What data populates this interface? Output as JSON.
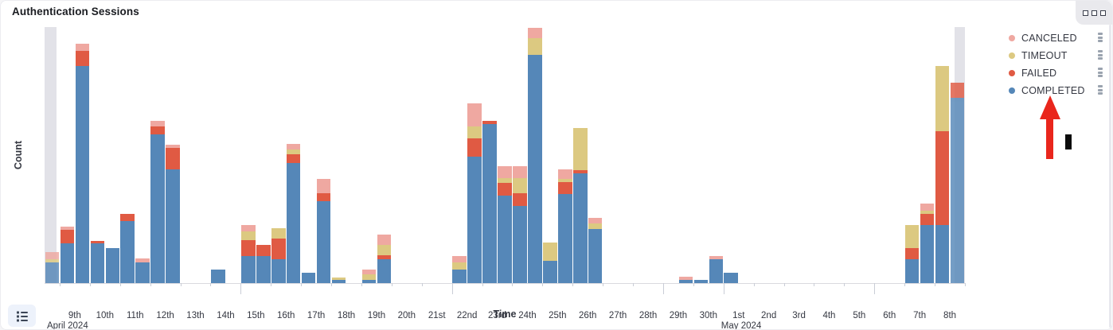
{
  "panel": {
    "title": "Authentication Sessions"
  },
  "icons": {
    "panel_options": "three-boxes-icon",
    "legend_toggle": "list-icon"
  },
  "legend": {
    "position": "right",
    "items": [
      {
        "key": "canceled",
        "label": "CANCELED",
        "color": "#EFA8A1"
      },
      {
        "key": "timeout",
        "label": "TIMEOUT",
        "color": "#DCC981"
      },
      {
        "key": "failed",
        "label": "FAILED",
        "color": "#E05A43"
      },
      {
        "key": "completed",
        "label": "COMPLETED",
        "color": "#5587B8"
      }
    ]
  },
  "annotation": {
    "arrow_color": "#E9261C",
    "arrow_points_to": "COMPLETED",
    "cursor_mark_color": "#0B0B0B"
  },
  "chart_data": {
    "type": "bar",
    "stacked": true,
    "title": "Authentication Sessions",
    "xlabel": "Time",
    "ylabel": "Count",
    "y_tick_labels": [],
    "value_units": "relative (no numeric y ticks shown); values are pixel heights, plot height 322",
    "ylim": [
      0,
      322
    ],
    "bucket_hours": 12,
    "buckets_total": 61,
    "domain_start": "Apr 8 2024 12:00",
    "domain_end": "May 9 2024 00:00",
    "stack_order_bottom_to_top": [
      "completed",
      "failed",
      "timeout",
      "canceled"
    ],
    "partial_bucket_bands": {
      "left": true,
      "right": true,
      "color": "#E2E2E8"
    },
    "x_day_ticks": [
      "9th",
      "10th",
      "11th",
      "12th",
      "13th",
      "14th",
      "15th",
      "16th",
      "17th",
      "18th",
      "19th",
      "20th",
      "21st",
      "22nd",
      "23rd",
      "24th",
      "25th",
      "26th",
      "27th",
      "28th",
      "29th",
      "30th",
      "1st",
      "2nd",
      "3rd",
      "4th",
      "5th",
      "6th",
      "7th",
      "8th"
    ],
    "x_major_tick_day_indices": [
      6,
      13,
      20,
      22,
      27
    ],
    "x_month_labels": [
      {
        "text": "April 2024",
        "day_index": 0
      },
      {
        "text": "May 2024",
        "day_index": 22
      }
    ],
    "bars": [
      {
        "i": 0,
        "bucket": "Apr 8 12:00",
        "completed": 26,
        "failed": 0,
        "timeout": 4,
        "canceled": 9,
        "dimmed": true
      },
      {
        "i": 1,
        "bucket": "Apr 9 00:00",
        "completed": 50,
        "failed": 17,
        "timeout": 0,
        "canceled": 4,
        "dimmed": false
      },
      {
        "i": 2,
        "bucket": "Apr 9 12:00",
        "completed": 273,
        "failed": 19,
        "timeout": 0,
        "canceled": 9,
        "dimmed": false
      },
      {
        "i": 3,
        "bucket": "Apr 10 00:00",
        "completed": 50,
        "failed": 3,
        "timeout": 0,
        "canceled": 0,
        "dimmed": false
      },
      {
        "i": 4,
        "bucket": "Apr 10 12:00",
        "completed": 44,
        "failed": 0,
        "timeout": 0,
        "canceled": 0,
        "dimmed": false
      },
      {
        "i": 5,
        "bucket": "Apr 11 00:00",
        "completed": 78,
        "failed": 9,
        "timeout": 0,
        "canceled": 0,
        "dimmed": false
      },
      {
        "i": 6,
        "bucket": "Apr 11 12:00",
        "completed": 26,
        "failed": 0,
        "timeout": 0,
        "canceled": 5,
        "dimmed": false
      },
      {
        "i": 7,
        "bucket": "Apr 12 00:00",
        "completed": 187,
        "failed": 10,
        "timeout": 0,
        "canceled": 7,
        "dimmed": false
      },
      {
        "i": 8,
        "bucket": "Apr 12 12:00",
        "completed": 143,
        "failed": 27,
        "timeout": 0,
        "canceled": 4,
        "dimmed": false
      },
      {
        "i": 11,
        "bucket": "Apr 14 00:00",
        "completed": 17,
        "failed": 0,
        "timeout": 0,
        "canceled": 0,
        "dimmed": false
      },
      {
        "i": 13,
        "bucket": "Apr 15 00:00",
        "completed": 34,
        "failed": 20,
        "timeout": 11,
        "canceled": 8,
        "dimmed": false
      },
      {
        "i": 14,
        "bucket": "Apr 15 12:00",
        "completed": 34,
        "failed": 14,
        "timeout": 0,
        "canceled": 0,
        "dimmed": false
      },
      {
        "i": 15,
        "bucket": "Apr 16 00:00",
        "completed": 30,
        "failed": 26,
        "timeout": 13,
        "canceled": 0,
        "dimmed": false
      },
      {
        "i": 16,
        "bucket": "Apr 16 12:00",
        "completed": 151,
        "failed": 11,
        "timeout": 6,
        "canceled": 7,
        "dimmed": false
      },
      {
        "i": 17,
        "bucket": "Apr 17 00:00",
        "completed": 13,
        "failed": 0,
        "timeout": 0,
        "canceled": 0,
        "dimmed": false
      },
      {
        "i": 18,
        "bucket": "Apr 17 12:00",
        "completed": 103,
        "failed": 10,
        "timeout": 0,
        "canceled": 18,
        "dimmed": false
      },
      {
        "i": 19,
        "bucket": "Apr 18 00:00",
        "completed": 4,
        "failed": 0,
        "timeout": 3,
        "canceled": 0,
        "dimmed": false
      },
      {
        "i": 21,
        "bucket": "Apr 19 00:00",
        "completed": 4,
        "failed": 0,
        "timeout": 7,
        "canceled": 6,
        "dimmed": false
      },
      {
        "i": 22,
        "bucket": "Apr 19 12:00",
        "completed": 30,
        "failed": 5,
        "timeout": 13,
        "canceled": 13,
        "dimmed": false
      },
      {
        "i": 27,
        "bucket": "Apr 22 00:00",
        "completed": 17,
        "failed": 0,
        "timeout": 9,
        "canceled": 8,
        "dimmed": false
      },
      {
        "i": 28,
        "bucket": "Apr 22 12:00",
        "completed": 159,
        "failed": 23,
        "timeout": 15,
        "canceled": 29,
        "dimmed": false
      },
      {
        "i": 29,
        "bucket": "Apr 23 00:00",
        "completed": 200,
        "failed": 4,
        "timeout": 0,
        "canceled": 0,
        "dimmed": false
      },
      {
        "i": 30,
        "bucket": "Apr 23 12:00",
        "completed": 110,
        "failed": 16,
        "timeout": 6,
        "canceled": 15,
        "dimmed": false
      },
      {
        "i": 31,
        "bucket": "Apr 24 00:00",
        "completed": 97,
        "failed": 16,
        "timeout": 19,
        "canceled": 15,
        "dimmed": false
      },
      {
        "i": 32,
        "bucket": "Apr 24 12:00",
        "completed": 287,
        "failed": 0,
        "timeout": 21,
        "canceled": 13,
        "dimmed": false
      },
      {
        "i": 33,
        "bucket": "Apr 25 00:00",
        "completed": 28,
        "failed": 0,
        "timeout": 23,
        "canceled": 0,
        "dimmed": false
      },
      {
        "i": 34,
        "bucket": "Apr 25 12:00",
        "completed": 112,
        "failed": 15,
        "timeout": 4,
        "canceled": 12,
        "dimmed": false
      },
      {
        "i": 35,
        "bucket": "Apr 26 00:00",
        "completed": 138,
        "failed": 4,
        "timeout": 53,
        "canceled": 0,
        "dimmed": false
      },
      {
        "i": 36,
        "bucket": "Apr 26 12:00",
        "completed": 68,
        "failed": 0,
        "timeout": 7,
        "canceled": 7,
        "dimmed": false
      },
      {
        "i": 42,
        "bucket": "Apr 29 12:00",
        "completed": 4,
        "failed": 0,
        "timeout": 0,
        "canceled": 4,
        "dimmed": false
      },
      {
        "i": 43,
        "bucket": "Apr 30 00:00",
        "completed": 4,
        "failed": 0,
        "timeout": 0,
        "canceled": 0,
        "dimmed": false
      },
      {
        "i": 44,
        "bucket": "Apr 30 12:00",
        "completed": 30,
        "failed": 0,
        "timeout": 0,
        "canceled": 4,
        "dimmed": false
      },
      {
        "i": 45,
        "bucket": "May 1 00:00",
        "completed": 13,
        "failed": 0,
        "timeout": 0,
        "canceled": 0,
        "dimmed": false
      },
      {
        "i": 57,
        "bucket": "May 7 00:00",
        "completed": 30,
        "failed": 14,
        "timeout": 29,
        "canceled": 0,
        "dimmed": false
      },
      {
        "i": 58,
        "bucket": "May 7 12:00",
        "completed": 73,
        "failed": 14,
        "timeout": 4,
        "canceled": 9,
        "dimmed": false
      },
      {
        "i": 59,
        "bucket": "May 8 00:00",
        "completed": 73,
        "failed": 118,
        "timeout": 82,
        "canceled": 0,
        "dimmed": false
      },
      {
        "i": 60,
        "bucket": "May 8 12:00",
        "completed": 233,
        "failed": 19,
        "timeout": 0,
        "canceled": 0,
        "dimmed": true
      }
    ]
  }
}
